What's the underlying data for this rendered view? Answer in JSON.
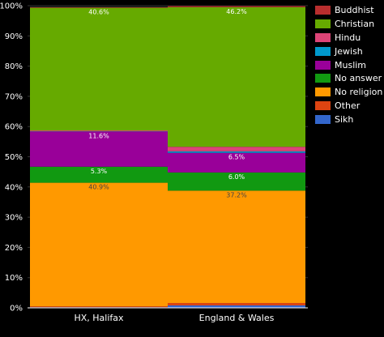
{
  "chart_data": {
    "type": "bar",
    "stacked": true,
    "categories": [
      "HX, Halifax",
      "England & Wales"
    ],
    "ylim": [
      0,
      100
    ],
    "yticks": [
      "0%",
      "10%",
      "20%",
      "30%",
      "40%",
      "50%",
      "60%",
      "70%",
      "80%",
      "90%",
      "100%"
    ],
    "grid": true,
    "legend_position": "right",
    "series": [
      {
        "name": "Sikh",
        "color": "#3366cc",
        "values": [
          0.2,
          0.8
        ]
      },
      {
        "name": "Other",
        "color": "#dd4411",
        "values": [
          0.3,
          0.8
        ]
      },
      {
        "name": "No religion",
        "color": "#ff9900",
        "values": [
          40.9,
          37.2
        ]
      },
      {
        "name": "No answer",
        "color": "#119911",
        "values": [
          5.3,
          6.0
        ]
      },
      {
        "name": "Muslim",
        "color": "#990099",
        "values": [
          11.6,
          6.5
        ]
      },
      {
        "name": "Jewish",
        "color": "#0099cc",
        "values": [
          0.1,
          0.5
        ]
      },
      {
        "name": "Hindu",
        "color": "#dd4477",
        "values": [
          0.3,
          1.5
        ]
      },
      {
        "name": "Christian",
        "color": "#66aa00",
        "values": [
          40.6,
          46.2
        ]
      },
      {
        "name": "Buddhist",
        "color": "#b82e2e",
        "values": [
          0.3,
          0.5
        ]
      }
    ],
    "data_labels": [
      {
        "category": "HX, Halifax",
        "series": "Christian",
        "text": "40.6%"
      },
      {
        "category": "HX, Halifax",
        "series": "Muslim",
        "text": "11.6%"
      },
      {
        "category": "HX, Halifax",
        "series": "No answer",
        "text": "5.3%"
      },
      {
        "category": "HX, Halifax",
        "series": "No religion",
        "text": "40.9%"
      },
      {
        "category": "England & Wales",
        "series": "Christian",
        "text": "46.2%"
      },
      {
        "category": "England & Wales",
        "series": "Muslim",
        "text": "6.5%"
      },
      {
        "category": "England & Wales",
        "series": "No answer",
        "text": "6.0%"
      },
      {
        "category": "England & Wales",
        "series": "No religion",
        "text": "37.2%"
      }
    ],
    "legend_order": [
      "Buddhist",
      "Christian",
      "Hindu",
      "Jewish",
      "Muslim",
      "No answer",
      "No religion",
      "Other",
      "Sikh"
    ]
  }
}
